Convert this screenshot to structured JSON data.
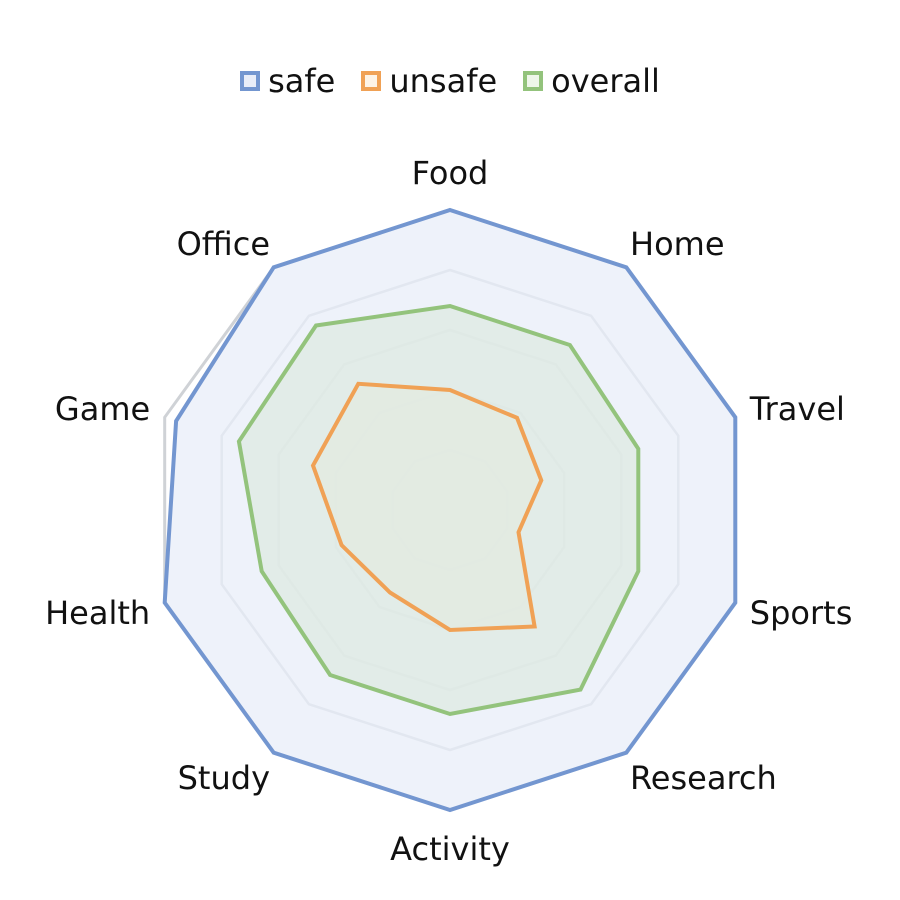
{
  "chart_data": {
    "type": "radar",
    "categories": [
      "Food",
      "Home",
      "Travel",
      "Sports",
      "Research",
      "Activity",
      "Study",
      "Health",
      "Game",
      "Office"
    ],
    "rlim": [
      0,
      5
    ],
    "rings": 4,
    "grid": true,
    "legend_position": "top",
    "series": [
      {
        "name": "safe",
        "values": [
          5.0,
          5.0,
          5.0,
          5.0,
          5.0,
          5.0,
          5.0,
          5.0,
          4.8,
          5.0
        ],
        "color": "#7396d0",
        "fill": "#e8edf8"
      },
      {
        "name": "unsafe",
        "values": [
          2.0,
          1.9,
          1.6,
          1.2,
          2.4,
          2.0,
          1.7,
          1.9,
          2.4,
          2.6
        ],
        "color": "#f0a155",
        "fill": "#f3eddc"
      },
      {
        "name": "overall",
        "values": [
          3.4,
          3.4,
          3.3,
          3.3,
          3.7,
          3.4,
          3.4,
          3.3,
          3.7,
          3.8
        ],
        "color": "#93c37c",
        "fill": "#dde9e2"
      }
    ]
  },
  "legend": [
    {
      "label": "safe",
      "color": "#7396d0",
      "fill": "#e8edf8"
    },
    {
      "label": "unsafe",
      "color": "#f0a155",
      "fill": "#fdf3e6"
    },
    {
      "label": "overall",
      "color": "#93c37c",
      "fill": "#eef6ea"
    }
  ],
  "grid_color": "#cfd2d6"
}
